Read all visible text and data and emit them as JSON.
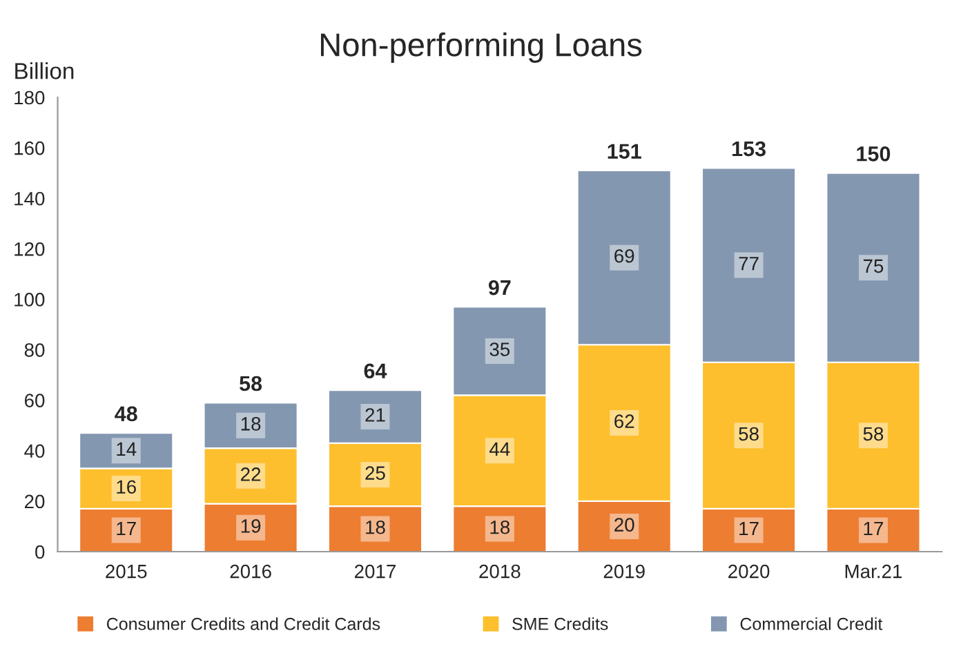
{
  "chart_data": {
    "type": "bar",
    "title": "Non-performing Loans",
    "ylabel": "Billion",
    "stacked": true,
    "categories": [
      "2015",
      "2016",
      "2017",
      "2018",
      "2019",
      "2020",
      "Mar.21"
    ],
    "series": [
      {
        "name": "Consumer Credits and Credit Cards",
        "color": "#ed7d31",
        "values": [
          17,
          19,
          18,
          18,
          20,
          17,
          17
        ]
      },
      {
        "name": "SME Credits",
        "color": "#fdbf2d",
        "values": [
          16,
          22,
          25,
          44,
          62,
          58,
          58
        ]
      },
      {
        "name": "Commercial Credit",
        "color": "#8497b0",
        "values": [
          14,
          18,
          21,
          35,
          69,
          77,
          75
        ]
      }
    ],
    "data_labels": true,
    "totals": [
      "48",
      "58",
      "64",
      "97",
      "151",
      "153",
      "150"
    ],
    "ylim": [
      0,
      180
    ],
    "yticks": [
      0,
      20,
      40,
      60,
      80,
      100,
      120,
      140,
      160,
      180
    ],
    "grid": false,
    "legend": "bottom"
  }
}
